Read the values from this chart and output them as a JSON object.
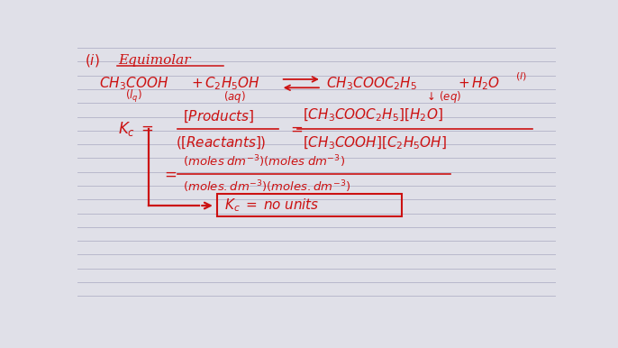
{
  "bg_color": "#e0e0e8",
  "line_color": "#b8b8cc",
  "text_color": "#cc1111",
  "fig_width": 6.86,
  "fig_height": 3.86,
  "dpi": 100
}
